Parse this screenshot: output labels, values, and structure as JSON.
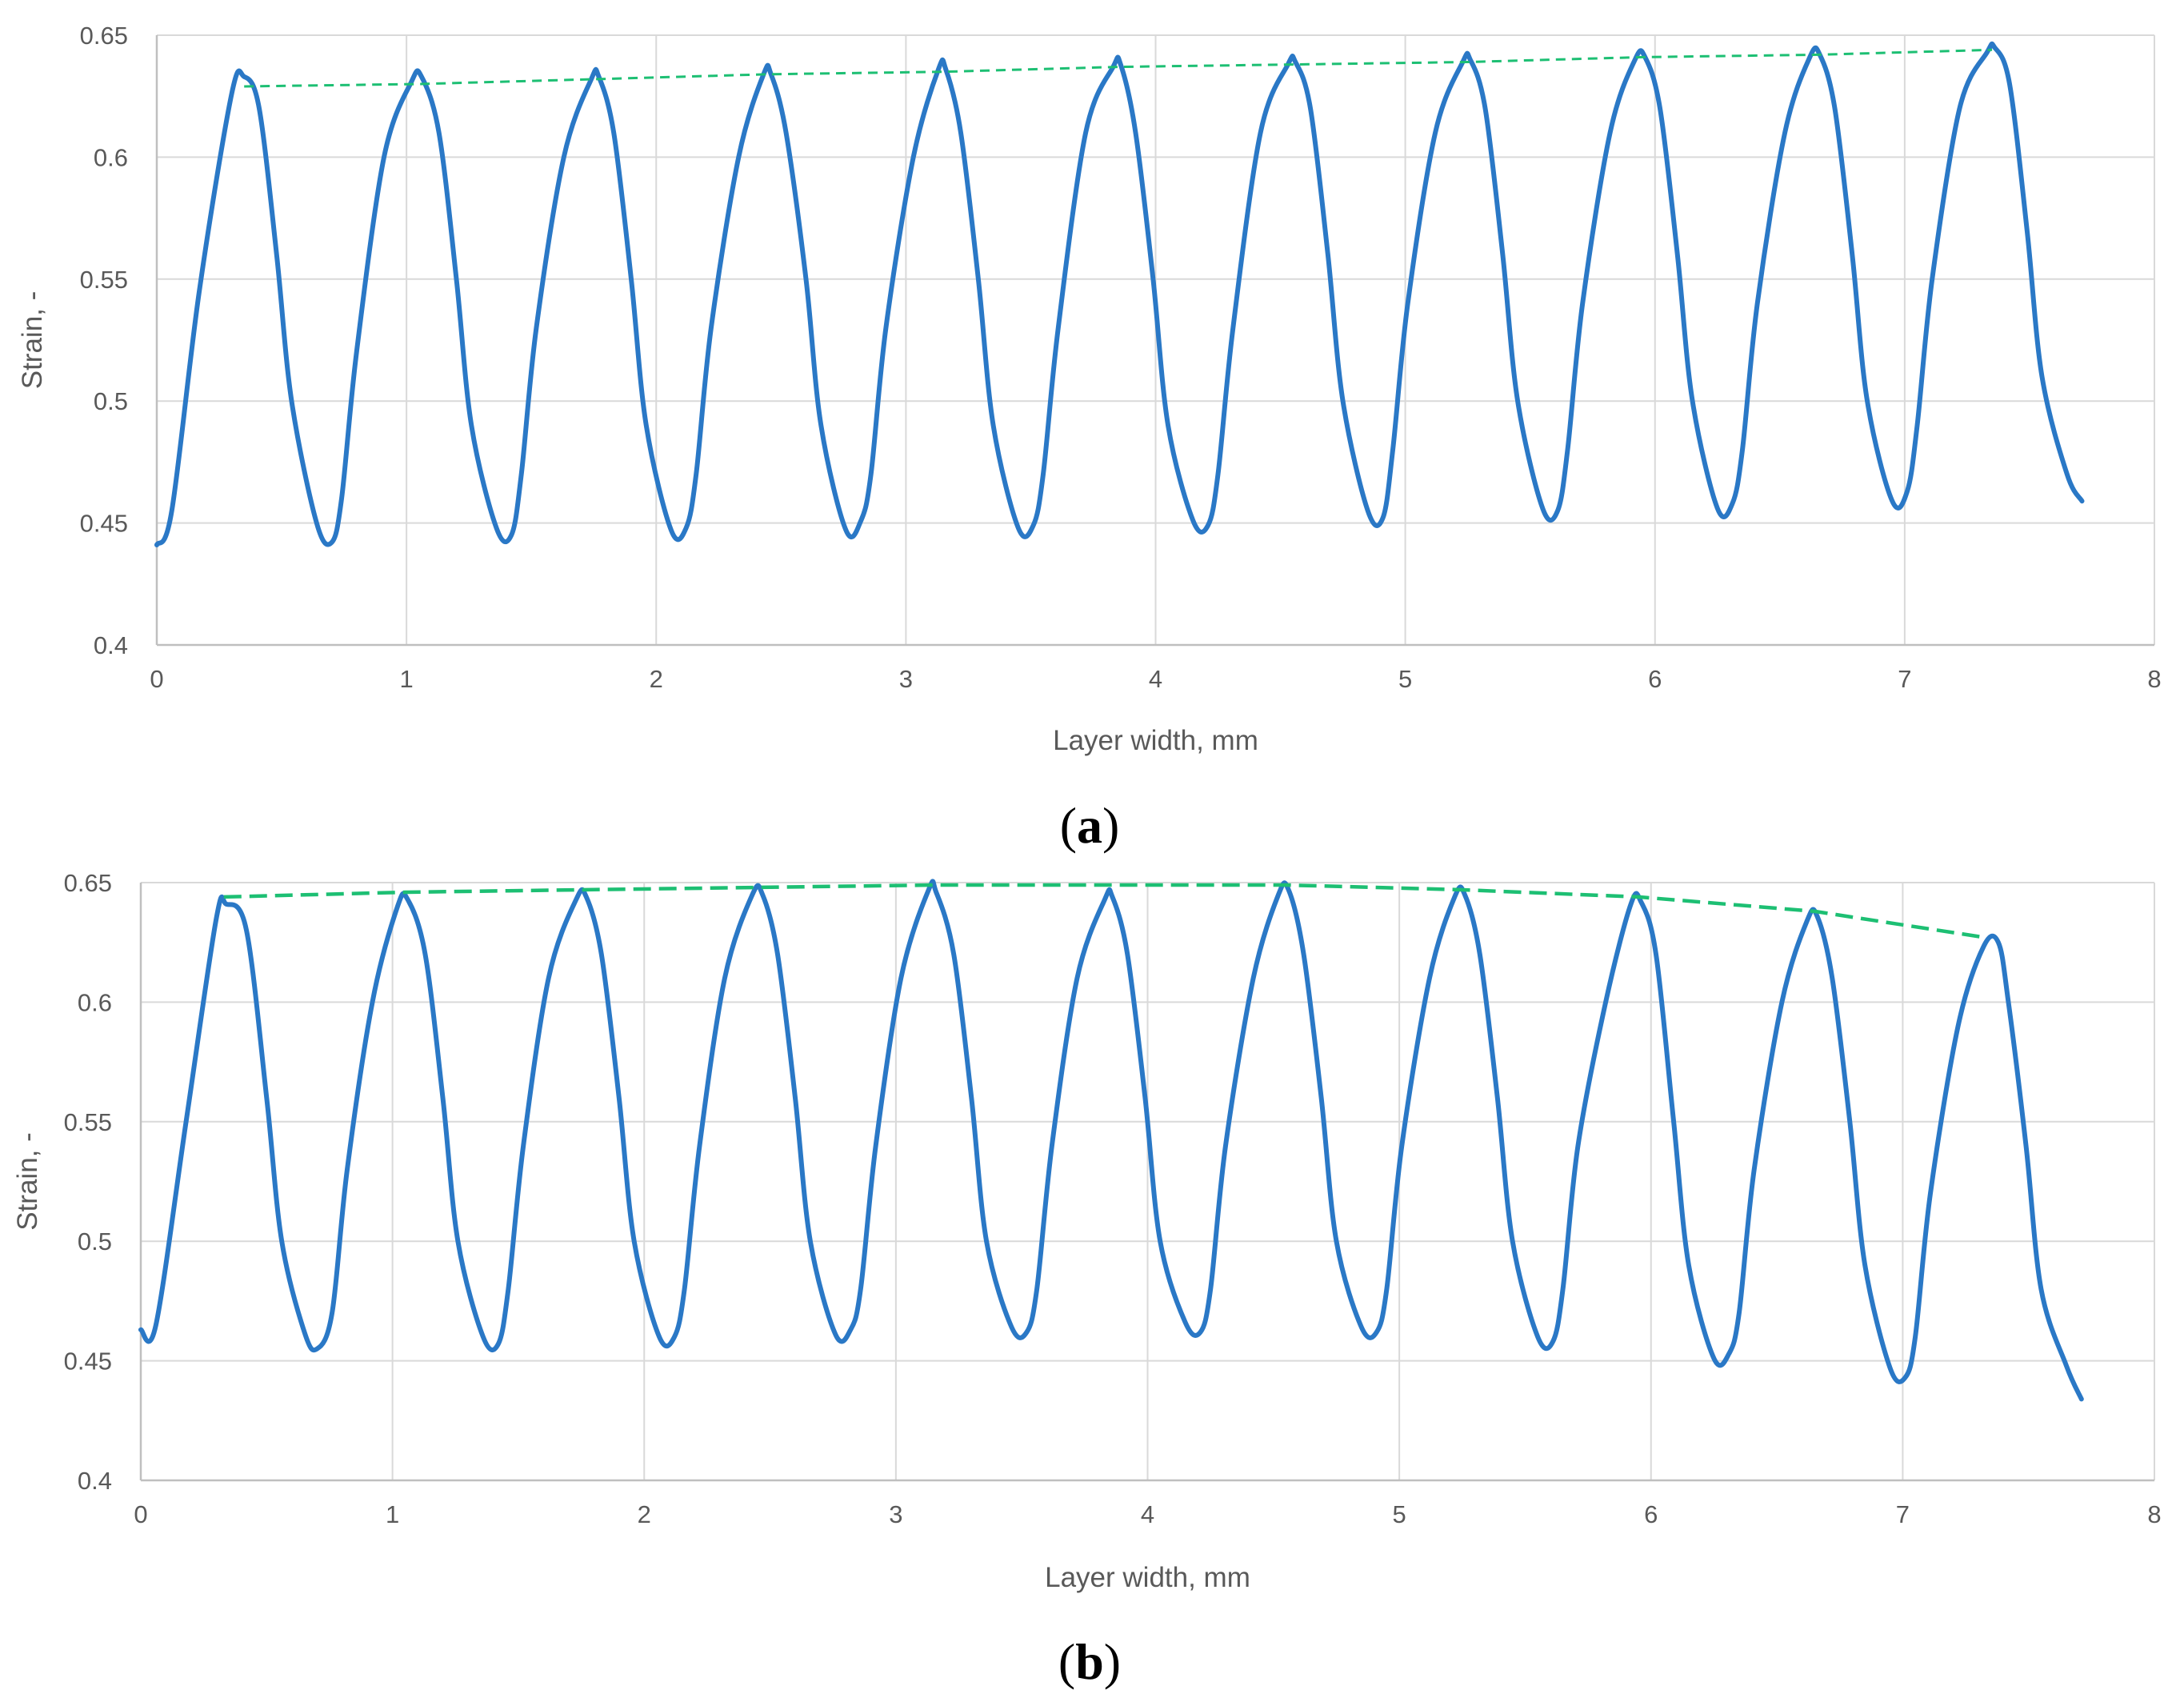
{
  "colors": {
    "strain_line": "#2a78c6",
    "trend_line": "#1dbf73",
    "grid": "#d9d9d9",
    "axis": "#bfbfbf",
    "text": "#595959"
  },
  "chart_data": [
    {
      "type": "line",
      "panel_label": "a",
      "xlabel": "Layer width, mm",
      "ylabel": "Strain, -",
      "xlim": [
        0,
        8
      ],
      "ylim": [
        0.4,
        0.65
      ],
      "x_ticks": [
        "0",
        "1",
        "2",
        "3",
        "4",
        "5",
        "6",
        "7",
        "8"
      ],
      "y_ticks": [
        "0.4",
        "0.45",
        "0.5",
        "0.55",
        "0.6",
        "0.65"
      ],
      "grid": true,
      "series": [
        {
          "style": "solid",
          "x": [
            0.0,
            0.06,
            0.17,
            0.3,
            0.35,
            0.41,
            0.48,
            0.54,
            0.64,
            0.7,
            0.74,
            0.8,
            0.91,
            1.02,
            1.06,
            1.13,
            1.2,
            1.26,
            1.36,
            1.42,
            1.46,
            1.52,
            1.63,
            1.74,
            1.77,
            1.83,
            1.9,
            1.96,
            2.06,
            2.12,
            2.16,
            2.22,
            2.33,
            2.43,
            2.46,
            2.52,
            2.6,
            2.66,
            2.76,
            2.82,
            2.86,
            2.92,
            3.03,
            3.13,
            3.16,
            3.22,
            3.29,
            3.35,
            3.45,
            3.51,
            3.55,
            3.61,
            3.72,
            3.83,
            3.86,
            3.92,
            3.99,
            4.05,
            4.15,
            4.21,
            4.25,
            4.31,
            4.42,
            4.53,
            4.56,
            4.62,
            4.69,
            4.75,
            4.85,
            4.91,
            4.95,
            5.01,
            5.12,
            5.23,
            5.26,
            5.32,
            5.39,
            5.45,
            5.55,
            5.61,
            5.65,
            5.71,
            5.82,
            5.92,
            5.96,
            6.02,
            6.09,
            6.15,
            6.25,
            6.31,
            6.35,
            6.41,
            6.52,
            6.62,
            6.66,
            6.72,
            6.79,
            6.85,
            6.95,
            7.01,
            7.05,
            7.11,
            7.22,
            7.33,
            7.36,
            7.42,
            7.49,
            7.55,
            7.65,
            7.71
          ],
          "values": [
            0.441,
            0.455,
            0.545,
            0.626,
            0.633,
            0.62,
            0.56,
            0.5,
            0.45,
            0.442,
            0.46,
            0.52,
            0.6,
            0.631,
            0.633,
            0.61,
            0.55,
            0.49,
            0.448,
            0.445,
            0.47,
            0.53,
            0.6,
            0.632,
            0.633,
            0.61,
            0.55,
            0.49,
            0.447,
            0.448,
            0.47,
            0.53,
            0.6,
            0.634,
            0.634,
            0.61,
            0.55,
            0.49,
            0.447,
            0.451,
            0.47,
            0.53,
            0.6,
            0.636,
            0.636,
            0.61,
            0.55,
            0.49,
            0.448,
            0.449,
            0.47,
            0.53,
            0.61,
            0.637,
            0.638,
            0.61,
            0.55,
            0.49,
            0.451,
            0.449,
            0.47,
            0.53,
            0.61,
            0.638,
            0.639,
            0.62,
            0.56,
            0.5,
            0.455,
            0.452,
            0.48,
            0.54,
            0.61,
            0.639,
            0.64,
            0.62,
            0.56,
            0.5,
            0.456,
            0.455,
            0.48,
            0.54,
            0.61,
            0.64,
            0.641,
            0.62,
            0.56,
            0.5,
            0.456,
            0.458,
            0.48,
            0.54,
            0.61,
            0.641,
            0.642,
            0.62,
            0.56,
            0.5,
            0.459,
            0.463,
            0.49,
            0.55,
            0.62,
            0.643,
            0.645,
            0.63,
            0.57,
            0.51,
            0.47,
            0.459
          ]
        },
        {
          "style": "dashed",
          "x": [
            0.35,
            1.05,
            1.76,
            2.45,
            3.15,
            3.85,
            4.55,
            5.25,
            5.95,
            6.65,
            7.35
          ],
          "values": [
            0.629,
            0.63,
            0.632,
            0.634,
            0.635,
            0.637,
            0.638,
            0.639,
            0.641,
            0.642,
            0.644
          ]
        }
      ]
    },
    {
      "type": "line",
      "panel_label": "b",
      "xlabel": "Layer width, mm",
      "ylabel": "Strain, -",
      "xlim": [
        0,
        8
      ],
      "ylim": [
        0.4,
        0.65
      ],
      "x_ticks": [
        "0",
        "1",
        "2",
        "3",
        "4",
        "5",
        "6",
        "7",
        "8"
      ],
      "y_ticks": [
        "0.4",
        "0.45",
        "0.5",
        "0.55",
        "0.6",
        "0.65"
      ],
      "grid": true,
      "series": [
        {
          "style": "solid",
          "x": [
            0.0,
            0.06,
            0.18,
            0.3,
            0.34,
            0.42,
            0.5,
            0.56,
            0.65,
            0.7,
            0.76,
            0.82,
            0.92,
            1.02,
            1.06,
            1.13,
            1.2,
            1.26,
            1.36,
            1.42,
            1.46,
            1.52,
            1.62,
            1.73,
            1.77,
            1.83,
            1.9,
            1.96,
            2.06,
            2.12,
            2.16,
            2.22,
            2.32,
            2.43,
            2.47,
            2.53,
            2.6,
            2.66,
            2.76,
            2.82,
            2.86,
            2.92,
            3.02,
            3.13,
            3.16,
            3.23,
            3.3,
            3.36,
            3.46,
            3.52,
            3.56,
            3.62,
            3.72,
            3.83,
            3.86,
            3.92,
            3.99,
            4.05,
            4.15,
            4.21,
            4.25,
            4.31,
            4.42,
            4.52,
            4.56,
            4.62,
            4.69,
            4.75,
            4.85,
            4.91,
            4.95,
            5.01,
            5.12,
            5.22,
            5.26,
            5.32,
            5.39,
            5.45,
            5.55,
            5.61,
            5.65,
            5.71,
            5.82,
            5.92,
            5.96,
            6.02,
            6.09,
            6.15,
            6.25,
            6.31,
            6.35,
            6.41,
            6.52,
            6.62,
            6.66,
            6.72,
            6.79,
            6.85,
            6.95,
            7.01,
            7.05,
            7.11,
            7.22,
            7.32,
            7.38,
            7.42,
            7.49,
            7.55,
            7.65,
            7.71
          ],
          "values": [
            0.463,
            0.465,
            0.55,
            0.635,
            0.641,
            0.63,
            0.56,
            0.5,
            0.462,
            0.455,
            0.47,
            0.53,
            0.6,
            0.64,
            0.643,
            0.62,
            0.56,
            0.5,
            0.46,
            0.457,
            0.48,
            0.54,
            0.61,
            0.643,
            0.644,
            0.62,
            0.56,
            0.5,
            0.46,
            0.46,
            0.48,
            0.54,
            0.61,
            0.645,
            0.645,
            0.62,
            0.56,
            0.5,
            0.461,
            0.463,
            0.48,
            0.54,
            0.61,
            0.647,
            0.646,
            0.62,
            0.56,
            0.5,
            0.464,
            0.462,
            0.48,
            0.54,
            0.61,
            0.643,
            0.644,
            0.62,
            0.56,
            0.5,
            0.466,
            0.462,
            0.48,
            0.54,
            0.61,
            0.645,
            0.647,
            0.62,
            0.56,
            0.5,
            0.464,
            0.462,
            0.48,
            0.54,
            0.61,
            0.644,
            0.645,
            0.62,
            0.56,
            0.5,
            0.46,
            0.458,
            0.48,
            0.54,
            0.6,
            0.641,
            0.642,
            0.62,
            0.55,
            0.49,
            0.451,
            0.453,
            0.47,
            0.53,
            0.6,
            0.634,
            0.636,
            0.61,
            0.55,
            0.49,
            0.447,
            0.443,
            0.46,
            0.52,
            0.59,
            0.623,
            0.625,
            0.6,
            0.54,
            0.48,
            0.448,
            0.434
          ]
        },
        {
          "style": "dashed",
          "x": [
            0.33,
            1.05,
            1.75,
            2.45,
            3.15,
            3.85,
            4.55,
            5.25,
            5.95,
            6.65,
            7.33
          ],
          "values": [
            0.644,
            0.646,
            0.647,
            0.648,
            0.649,
            0.649,
            0.649,
            0.647,
            0.644,
            0.638,
            0.627
          ]
        }
      ]
    }
  ]
}
